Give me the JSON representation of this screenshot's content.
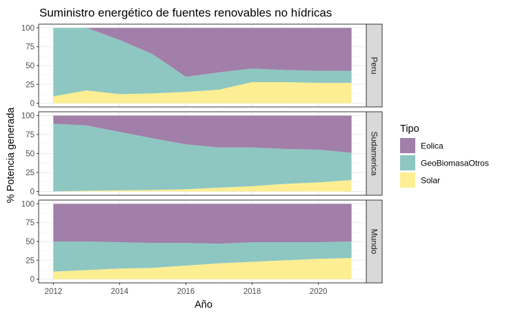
{
  "chart_data": {
    "type": "area",
    "stacking": "percent",
    "title": "Suministro energético de fuentes renovables no hídricas",
    "xlabel": "Año",
    "ylabel": "% Potencia generada",
    "xlim": [
      2012,
      2021
    ],
    "ylim": [
      0,
      100
    ],
    "x_ticks": [
      2012,
      2014,
      2016,
      2018,
      2020
    ],
    "y_ticks": [
      0,
      25,
      50,
      75,
      100
    ],
    "grid": true,
    "legend": {
      "title": "Tipo",
      "position": "right",
      "entries": [
        {
          "name": "Eolica",
          "color": "#a17fa9"
        },
        {
          "name": "GeoBiomasaOtros",
          "color": "#8ec7c2"
        },
        {
          "name": "Solar",
          "color": "#fdee93"
        }
      ]
    },
    "x": [
      2012,
      2013,
      2014,
      2015,
      2016,
      2017,
      2018,
      2019,
      2020,
      2021
    ],
    "panels": [
      {
        "label": "Peru",
        "series": [
          {
            "name": "Solar",
            "values": [
              9,
              17,
              12,
              13,
              15,
              18,
              28,
              28,
              27,
              27
            ]
          },
          {
            "name": "GeoBiomasaOtros",
            "values": [
              91,
              83,
              72,
              52,
              20,
              23,
              18,
              16,
              16,
              16
            ]
          },
          {
            "name": "Eolica",
            "values": [
              0,
              0,
              16,
              35,
              65,
              59,
              54,
              56,
              57,
              57
            ]
          }
        ]
      },
      {
        "label": "Sudamerica",
        "series": [
          {
            "name": "Solar",
            "values": [
              0,
              1,
              1.5,
              2,
              3,
              5,
              7,
              10,
              12,
              15
            ]
          },
          {
            "name": "GeoBiomasaOtros",
            "values": [
              89,
              86,
              77,
              68,
              59,
              53,
              51,
              46,
              43,
              36
            ]
          },
          {
            "name": "Eolica",
            "values": [
              11,
              13,
              21.5,
              30,
              38,
              42,
              42,
              44,
              45,
              49
            ]
          }
        ]
      },
      {
        "label": "Mundo",
        "series": [
          {
            "name": "Solar",
            "values": [
              10,
              12,
              14,
              15,
              18,
              21,
              23,
              25,
              27,
              28
            ]
          },
          {
            "name": "GeoBiomasaOtros",
            "values": [
              40,
              38,
              35,
              33,
              30,
              26,
              26,
              24,
              22,
              22
            ]
          },
          {
            "name": "Eolica",
            "values": [
              50,
              50,
              51,
              52,
              52,
              53,
              51,
              51,
              51,
              50
            ]
          }
        ]
      }
    ]
  }
}
